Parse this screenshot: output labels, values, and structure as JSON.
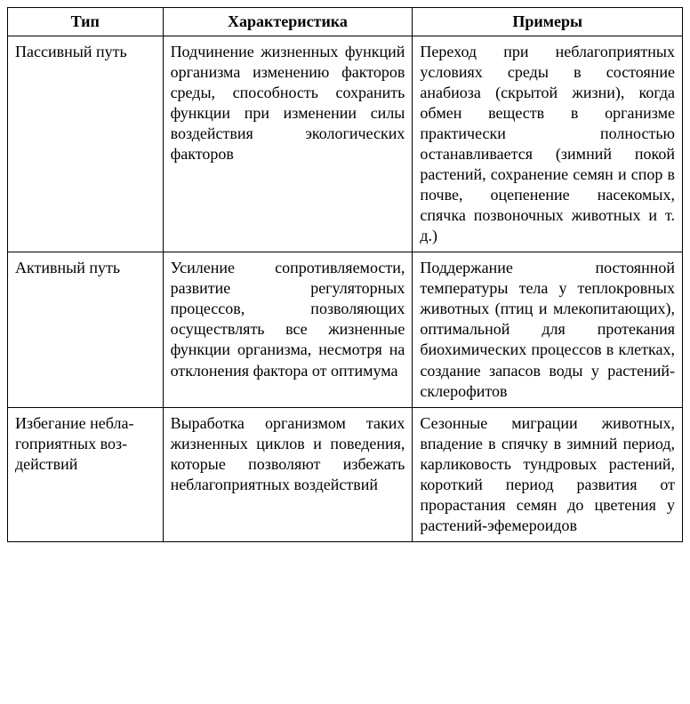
{
  "table": {
    "columns": [
      "Тип",
      "Характеристика",
      "Примеры"
    ],
    "rows": [
      {
        "type": "Пассивный путь",
        "characteristic": "Подчинение жизненных функций организма изме­нению факторов среды, способность сохранить функции при изменении силы воздействия экологи­ческих факторов",
        "examples": "Переход при неблаго­приятных условиях сре­ды в состояние анабиоза (скрытой жизни), когда обмен веществ в организ­ме практически полностью останавливается (зимний покой растений, сохране­ние семян и спор в почве, оцепенение насекомых, спячка позвоночных жи­вотных и т. д.)"
      },
      {
        "type": "Активный путь",
        "characteristic": "Усиление сопротивляемос­ти, развитие регуляторных процессов, позволяющих осуществлять все жизнен­ные функции организма, несмотря на отклонения фактора от оптимума",
        "examples": "Поддержание постоянной температуры тела у тепло­кровных животных (птиц и млекопитающих), опти­мальной для протекания биохимических процессов в клетках, создание запа­сов воды у растений-скле­рофитов"
      },
      {
        "type": "Избегание небла­гоприятных воз­действий",
        "characteristic": "Выработка организмом таких жизненных циклов и поведения, которые поз­воляют избежать неблаго­приятных воздействий",
        "examples": "Сезонные миграции жи­вотных, впадение в спячку в зимний период, карлико­вость тундровых растений, короткий период разви­тия от прорастания семян до цветения у растений-эфемероидов"
      }
    ],
    "style": {
      "font_family": "Times New Roman",
      "font_size_pt": 14,
      "border_color": "#000000",
      "background_color": "#ffffff",
      "text_color": "#000000",
      "column_widths_pct": [
        23,
        37,
        40
      ]
    }
  }
}
